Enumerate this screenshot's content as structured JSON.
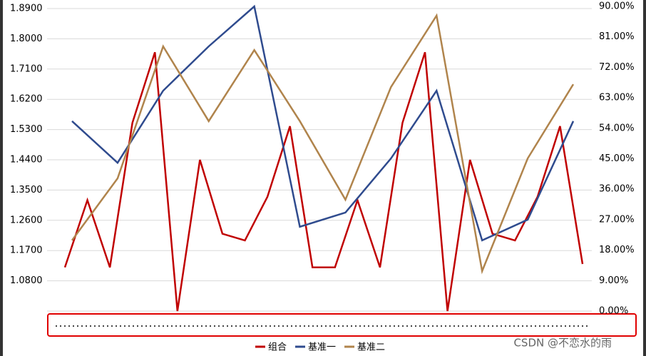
{
  "chart_data": {
    "type": "line",
    "series": [
      {
        "name": "组合",
        "color": "#c00000",
        "values": [
          1.12,
          1.32,
          1.12,
          1.55,
          1.76,
          0.99,
          1.44,
          1.22,
          1.2,
          1.33,
          1.54,
          1.12,
          1.12,
          1.32,
          1.12,
          1.55,
          1.76,
          0.99,
          1.44,
          1.22,
          1.2,
          1.33,
          1.54,
          1.13
        ]
      },
      {
        "name": "基准一",
        "color": "#2f4b8e",
        "axis": "y2",
        "values": [
          56.1,
          43.8,
          65.1,
          78.2,
          90.0,
          24.9,
          29.1,
          45.1,
          65.1,
          20.9,
          27.0,
          56.1
        ]
      },
      {
        "name": "基准二",
        "color": "#b0844c",
        "axis": "y2",
        "values": [
          20.9,
          39.2,
          78.2,
          56.1,
          77.1,
          56.1,
          32.9,
          66.2,
          87.3,
          11.8,
          45.1,
          67.0
        ]
      }
    ],
    "ylim": [
      0.99,
      1.89
    ],
    "yticks": [
      {
        "value": 1.08,
        "label": "1.0800"
      },
      {
        "value": 1.17,
        "label": "1.1700"
      },
      {
        "value": 1.26,
        "label": "1.2600"
      },
      {
        "value": 1.35,
        "label": "1.3500"
      },
      {
        "value": 1.44,
        "label": "1.4400"
      },
      {
        "value": 1.53,
        "label": "1.5300"
      },
      {
        "value": 1.62,
        "label": "1.6200"
      },
      {
        "value": 1.71,
        "label": "1.7100"
      },
      {
        "value": 1.8,
        "label": "1.8000"
      },
      {
        "value": 1.89,
        "label": "1.8900"
      }
    ],
    "y2lim": [
      0,
      90
    ],
    "y2ticks": [
      {
        "value": 0,
        "label": "0.00%"
      },
      {
        "value": 9,
        "label": "9.00%"
      },
      {
        "value": 18,
        "label": "18.00%"
      },
      {
        "value": 27,
        "label": "27.00%"
      },
      {
        "value": 36,
        "label": "36.00%"
      },
      {
        "value": 45,
        "label": "45.00%"
      },
      {
        "value": 54,
        "label": "54.00%"
      },
      {
        "value": 63,
        "label": "63.00%"
      },
      {
        "value": 72,
        "label": "72.00%"
      },
      {
        "value": 81,
        "label": "81.00%"
      },
      {
        "value": 90,
        "label": "90.00%"
      }
    ],
    "grid": true,
    "watermark": "CSDN @不恋水的雨"
  }
}
